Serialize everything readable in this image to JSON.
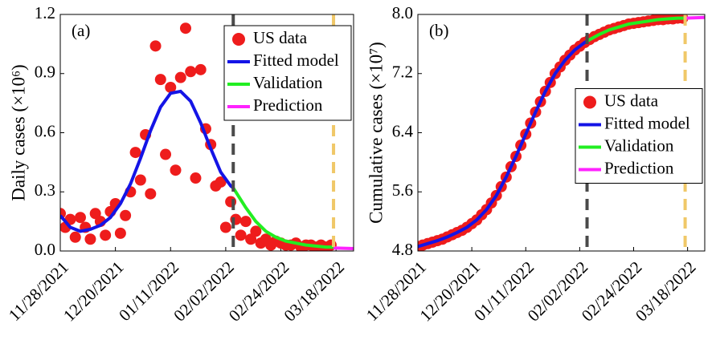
{
  "chart_data": [
    {
      "type": "line",
      "panel_label": "(a)",
      "ylabel": "Daily cases (×10⁶)",
      "legend": "upper right",
      "xlim": [
        "2021-11-28",
        "2022-03-25"
      ],
      "ylim": [
        0,
        1.2
      ],
      "xticks": [
        {
          "value": "2021-11-28",
          "label": "11/28/2021"
        },
        {
          "value": "2021-12-20",
          "label": "12/20/2021"
        },
        {
          "value": "2022-01-11",
          "label": "01/11/2022"
        },
        {
          "value": "2022-02-02",
          "label": "02/02/2022"
        },
        {
          "value": "2022-02-24",
          "label": "02/24/2022"
        },
        {
          "value": "2022-03-18",
          "label": "03/18/2022"
        }
      ],
      "yticks": [
        {
          "value": 0,
          "label": "0.0"
        },
        0.3,
        0.6,
        0.9,
        1.2
      ],
      "vlines": [
        {
          "x": "2022-02-05",
          "color": "#4a4a4a"
        },
        {
          "x": "2022-03-17",
          "color": "#f0c868"
        }
      ],
      "series": [
        {
          "name": "US data",
          "mode": "markers",
          "color": "#ee1c1c",
          "x": [
            "2021-11-28",
            "2021-11-30",
            "2021-12-02",
            "2021-12-04",
            "2021-12-06",
            "2021-12-08",
            "2021-12-10",
            "2021-12-12",
            "2021-12-14",
            "2021-12-16",
            "2021-12-18",
            "2021-12-20",
            "2021-12-22",
            "2021-12-24",
            "2021-12-26",
            "2021-12-28",
            "2021-12-30",
            "2022-01-01",
            "2022-01-03",
            "2022-01-05",
            "2022-01-07",
            "2022-01-09",
            "2022-01-11",
            "2022-01-13",
            "2022-01-15",
            "2022-01-17",
            "2022-01-19",
            "2022-01-21",
            "2022-01-23",
            "2022-01-25",
            "2022-01-27",
            "2022-01-29",
            "2022-01-31",
            "2022-02-02",
            "2022-02-04",
            "2022-02-06",
            "2022-02-08",
            "2022-02-10",
            "2022-02-12",
            "2022-02-14",
            "2022-02-16",
            "2022-02-18",
            "2022-02-20",
            "2022-02-22",
            "2022-02-24",
            "2022-02-26",
            "2022-02-28",
            "2022-03-02",
            "2022-03-04",
            "2022-03-06",
            "2022-03-08",
            "2022-03-10",
            "2022-03-12",
            "2022-03-14",
            "2022-03-16"
          ],
          "values": [
            0.19,
            0.12,
            0.16,
            0.07,
            0.17,
            0.12,
            0.06,
            0.19,
            0.15,
            0.08,
            0.2,
            0.24,
            0.09,
            0.18,
            0.3,
            0.5,
            0.36,
            0.59,
            0.29,
            1.04,
            0.87,
            0.49,
            0.83,
            0.41,
            0.88,
            1.13,
            0.91,
            0.37,
            0.92,
            0.62,
            0.54,
            0.33,
            0.35,
            0.12,
            0.25,
            0.16,
            0.08,
            0.15,
            0.06,
            0.1,
            0.04,
            0.06,
            0.03,
            0.05,
            0.04,
            0.03,
            0.03,
            0.04,
            0.02,
            0.03,
            0.03,
            0.02,
            0.03,
            0.02,
            0.03
          ]
        },
        {
          "name": "Fitted model",
          "mode": "lines",
          "color": "#1414e6",
          "x": [
            "2021-11-28",
            "2021-12-02",
            "2021-12-06",
            "2021-12-10",
            "2021-12-14",
            "2021-12-18",
            "2021-12-22",
            "2021-12-26",
            "2021-12-30",
            "2022-01-03",
            "2022-01-07",
            "2022-01-11",
            "2022-01-15",
            "2022-01-19",
            "2022-01-23",
            "2022-01-27",
            "2022-01-31",
            "2022-02-04",
            "2022-02-05"
          ],
          "values": [
            0.18,
            0.12,
            0.1,
            0.11,
            0.13,
            0.17,
            0.24,
            0.34,
            0.47,
            0.61,
            0.73,
            0.8,
            0.81,
            0.76,
            0.65,
            0.52,
            0.4,
            0.33,
            0.32
          ]
        },
        {
          "name": "Validation",
          "mode": "lines",
          "color": "#22ee22",
          "x": [
            "2022-02-05",
            "2022-02-10",
            "2022-02-14",
            "2022-02-18",
            "2022-02-22",
            "2022-02-26",
            "2022-03-02",
            "2022-03-06",
            "2022-03-10",
            "2022-03-14",
            "2022-03-17"
          ],
          "values": [
            0.32,
            0.22,
            0.15,
            0.1,
            0.07,
            0.05,
            0.04,
            0.03,
            0.025,
            0.02,
            0.02
          ]
        },
        {
          "name": "Prediction",
          "mode": "lines",
          "color": "#ff22ff",
          "x": [
            "2022-03-17",
            "2022-03-25"
          ],
          "values": [
            0.015,
            0.012
          ]
        }
      ]
    },
    {
      "type": "line",
      "panel_label": "(b)",
      "ylabel": "Cumulative cases (×10⁷)",
      "legend": "center right",
      "xlim": [
        "2021-11-28",
        "2022-03-25"
      ],
      "ylim": [
        4.8,
        8.0
      ],
      "xticks": [
        {
          "value": "2021-11-28",
          "label": "11/28/2021"
        },
        {
          "value": "2021-12-20",
          "label": "12/20/2021"
        },
        {
          "value": "2022-01-11",
          "label": "01/11/2022"
        },
        {
          "value": "2022-02-02",
          "label": "02/02/2022"
        },
        {
          "value": "2022-02-24",
          "label": "02/24/2022"
        },
        {
          "value": "2022-03-18",
          "label": "03/18/2022"
        }
      ],
      "yticks": [
        4.8,
        5.6,
        6.4,
        7.2,
        {
          "value": 8,
          "label": "8.0"
        }
      ],
      "vlines": [
        {
          "x": "2022-02-05",
          "color": "#4a4a4a"
        },
        {
          "x": "2022-03-17",
          "color": "#f0c868"
        }
      ],
      "series": [
        {
          "name": "US data",
          "mode": "markers",
          "color": "#ee1c1c",
          "x": [
            "2021-11-28",
            "2021-11-30",
            "2021-12-02",
            "2021-12-04",
            "2021-12-06",
            "2021-12-08",
            "2021-12-10",
            "2021-12-12",
            "2021-12-14",
            "2021-12-16",
            "2021-12-18",
            "2021-12-20",
            "2021-12-22",
            "2021-12-24",
            "2021-12-26",
            "2021-12-28",
            "2021-12-30",
            "2022-01-01",
            "2022-01-03",
            "2022-01-05",
            "2022-01-07",
            "2022-01-09",
            "2022-01-11",
            "2022-01-13",
            "2022-01-15",
            "2022-01-17",
            "2022-01-19",
            "2022-01-21",
            "2022-01-23",
            "2022-01-25",
            "2022-01-27",
            "2022-01-29",
            "2022-01-31",
            "2022-02-02",
            "2022-02-04",
            "2022-02-06",
            "2022-02-08",
            "2022-02-10",
            "2022-02-12",
            "2022-02-14",
            "2022-02-16",
            "2022-02-18",
            "2022-02-20",
            "2022-02-22",
            "2022-02-24",
            "2022-02-26",
            "2022-02-28",
            "2022-03-02",
            "2022-03-04",
            "2022-03-06",
            "2022-03-08",
            "2022-03-10",
            "2022-03-12",
            "2022-03-14",
            "2022-03-16"
          ],
          "values": [
            4.86,
            4.88,
            4.9,
            4.92,
            4.94,
            4.96,
            4.99,
            5.02,
            5.05,
            5.08,
            5.12,
            5.17,
            5.22,
            5.29,
            5.36,
            5.45,
            5.55,
            5.67,
            5.8,
            5.94,
            6.08,
            6.23,
            6.38,
            6.53,
            6.68,
            6.82,
            6.96,
            7.08,
            7.2,
            7.29,
            7.38,
            7.45,
            7.52,
            7.57,
            7.62,
            7.66,
            7.7,
            7.73,
            7.76,
            7.79,
            7.81,
            7.83,
            7.85,
            7.87,
            7.88,
            7.89,
            7.9,
            7.91,
            7.92,
            7.93,
            7.93,
            7.94,
            7.94,
            7.95,
            7.95
          ]
        },
        {
          "name": "Fitted model",
          "mode": "lines",
          "color": "#1414e6",
          "x": [
            "2021-11-28",
            "2021-12-02",
            "2021-12-06",
            "2021-12-10",
            "2021-12-14",
            "2021-12-18",
            "2021-12-22",
            "2021-12-26",
            "2021-12-30",
            "2022-01-03",
            "2022-01-07",
            "2022-01-11",
            "2022-01-15",
            "2022-01-19",
            "2022-01-23",
            "2022-01-27",
            "2022-01-31",
            "2022-02-04",
            "2022-02-05"
          ],
          "values": [
            4.86,
            4.9,
            4.94,
            4.99,
            5.05,
            5.12,
            5.22,
            5.36,
            5.55,
            5.8,
            6.08,
            6.38,
            6.68,
            6.96,
            7.2,
            7.38,
            7.52,
            7.62,
            7.64
          ]
        },
        {
          "name": "Validation",
          "mode": "lines",
          "color": "#22ee22",
          "x": [
            "2022-02-05",
            "2022-02-10",
            "2022-02-14",
            "2022-02-18",
            "2022-02-22",
            "2022-02-26",
            "2022-03-02",
            "2022-03-06",
            "2022-03-10",
            "2022-03-14",
            "2022-03-17"
          ],
          "values": [
            7.64,
            7.73,
            7.79,
            7.83,
            7.87,
            7.89,
            7.91,
            7.93,
            7.94,
            7.95,
            7.95
          ]
        },
        {
          "name": "Prediction",
          "mode": "lines",
          "color": "#ff22ff",
          "x": [
            "2022-03-17",
            "2022-03-25"
          ],
          "values": [
            7.95,
            7.96
          ]
        }
      ]
    }
  ]
}
